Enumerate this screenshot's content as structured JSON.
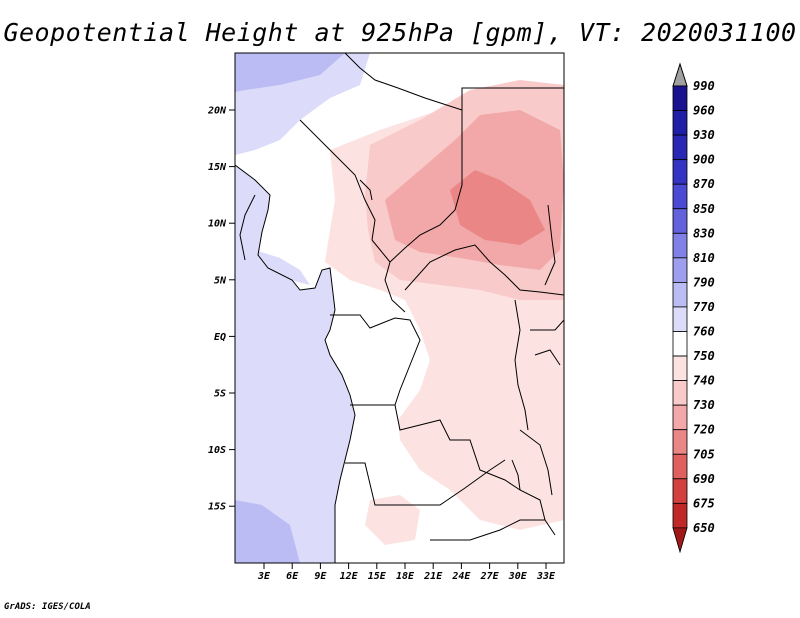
{
  "title": "Geopotential Height at 925hPa [gpm], VT: 2020031100",
  "credit": "GrADS: IGES/COLA",
  "map": {
    "lat_labels": [
      "20N",
      "15N",
      "10N",
      "5N",
      "EQ",
      "5S",
      "10S",
      "15S"
    ],
    "lon_labels": [
      "3E",
      "6E",
      "9E",
      "12E",
      "15E",
      "18E",
      "21E",
      "24E",
      "27E",
      "30E",
      "33E"
    ],
    "region": "Central Africa"
  },
  "colorbar": {
    "levels": [
      {
        "label": "990",
        "color": "#1a1190"
      },
      {
        "label": "960",
        "color": "#1e1ea6"
      },
      {
        "label": "930",
        "color": "#2828b4"
      },
      {
        "label": "900",
        "color": "#3434c4"
      },
      {
        "label": "870",
        "color": "#4a4ad4"
      },
      {
        "label": "850",
        "color": "#6262dc"
      },
      {
        "label": "830",
        "color": "#8080e6"
      },
      {
        "label": "810",
        "color": "#9e9eee"
      },
      {
        "label": "790",
        "color": "#bcbcf4"
      },
      {
        "label": "770",
        "color": "#dcdcfa"
      },
      {
        "label": "760",
        "color": "#ffffff"
      },
      {
        "label": "750",
        "color": "#fde2e2"
      },
      {
        "label": "740",
        "color": "#f9caca"
      },
      {
        "label": "730",
        "color": "#f2a8a8"
      },
      {
        "label": "720",
        "color": "#ea8686"
      },
      {
        "label": "705",
        "color": "#e06060"
      },
      {
        "label": "690",
        "color": "#d24040"
      },
      {
        "label": "675",
        "color": "#c02828"
      },
      {
        "label": "650",
        "color": "#a01818"
      }
    ],
    "top_arrow_color": "#a0a0a0",
    "bottom_arrow_color": "#a01818"
  },
  "palette": {
    "ocean": "#dcdcfa",
    "ocean_deep": "#bcbcf4",
    "land_neutral": "#ffffff",
    "land_light": "#fde2e2",
    "land_mid": "#f9caca",
    "land_high": "#f2a8a8",
    "land_peak": "#ea8686"
  }
}
